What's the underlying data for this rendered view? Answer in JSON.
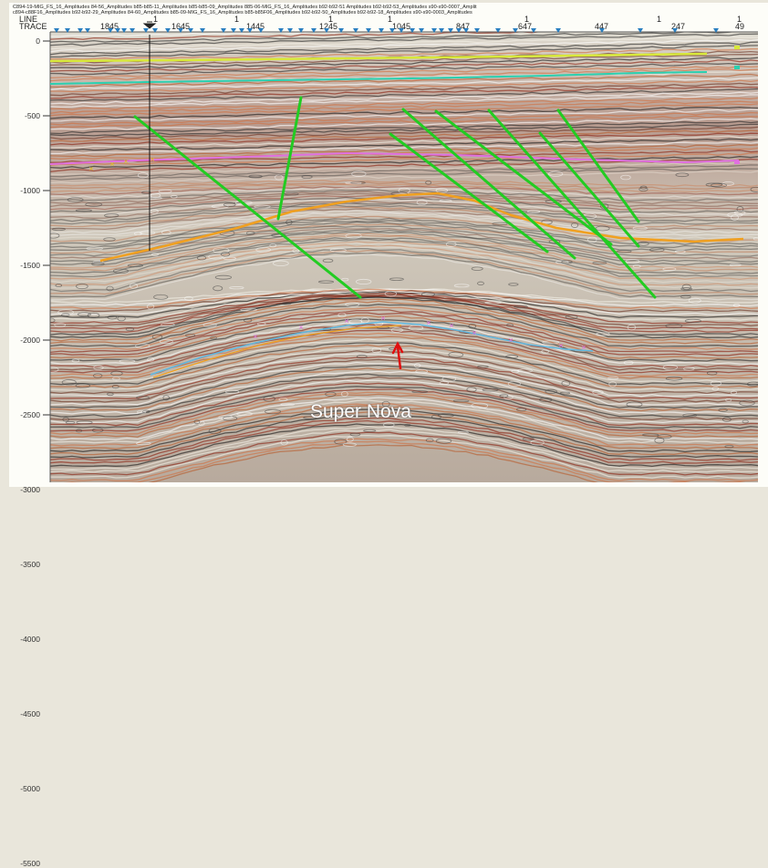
{
  "header_lines": [
    "C894-19-MIG_FS_16_Amplitudes   84-56_Amplitudes        b85-b85-11_Amplitudes   b85-b85-09_Amplitudes      885-06-MIG_FS_16_Amplitudes      b92-b92-51 Amplitudes            b92-b92-53_Amplitudes      s90-s90-0007_Amplit",
    "  c894-c88F16_Amplitudes   b92-b92-29_Amplitudes     84-60_Amplitudes     b85-09-MIG_FS_16_Amplitudes      b85-b85F06_Amplitudes   b92-b92-50_Amplitudes   b92-b92-18_Amplitudes   s90-s90-0003_Amplitudes"
  ],
  "line_label": "LINE",
  "trace_label": "TRACE",
  "line_values": [
    "1",
    "1",
    "1",
    "1",
    "1",
    "1",
    "1",
    "1"
  ],
  "trace_values": [
    "1845",
    "1645",
    "1445",
    "1245",
    "1045",
    "847",
    "647",
    "447",
    "247",
    "49"
  ],
  "depth_labels": [
    "0",
    "-500",
    "-1000",
    "-1500",
    "-2000",
    "-2500",
    "-3000",
    "-3500",
    "-4000",
    "-4500",
    "-5000",
    "-5500"
  ],
  "annotation": "Super Nova",
  "colors": {
    "horizon_yellow": "#d8e83a",
    "horizon_cyan": "#2ad0b0",
    "horizon_pink": "#e070e0",
    "horizon_orange": "#f0a020",
    "horizon_blue": "#60b8e0",
    "fault_green": "#22cc22",
    "arrow_red": "#e01010",
    "marker_blue": "#2a7fc0"
  },
  "icons": [
    "well-marker-icon",
    "trace-marker-triangle-icon",
    "red-arrow-icon"
  ]
}
